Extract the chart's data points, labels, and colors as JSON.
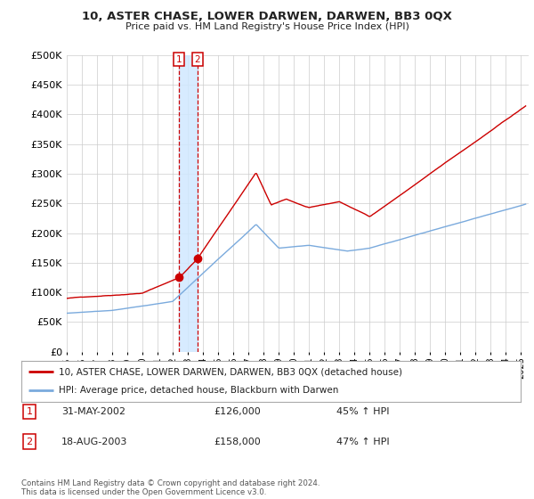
{
  "title": "10, ASTER CHASE, LOWER DARWEN, DARWEN, BB3 0QX",
  "subtitle": "Price paid vs. HM Land Registry's House Price Index (HPI)",
  "ytick_values": [
    0,
    50000,
    100000,
    150000,
    200000,
    250000,
    300000,
    350000,
    400000,
    450000,
    500000
  ],
  "ylim": [
    0,
    500000
  ],
  "xlim_start": 1995.0,
  "xlim_end": 2025.5,
  "xticks": [
    1995,
    1996,
    1997,
    1998,
    1999,
    2000,
    2001,
    2002,
    2003,
    2004,
    2005,
    2006,
    2007,
    2008,
    2009,
    2010,
    2011,
    2012,
    2013,
    2014,
    2015,
    2016,
    2017,
    2018,
    2019,
    2020,
    2021,
    2022,
    2023,
    2024,
    2025
  ],
  "transaction1_x": 2002.42,
  "transaction1_y": 126000,
  "transaction1_label": "1",
  "transaction1_date": "31-MAY-2002",
  "transaction1_price": "£126,000",
  "transaction1_hpi": "45% ↑ HPI",
  "transaction2_x": 2003.63,
  "transaction2_y": 158000,
  "transaction2_label": "2",
  "transaction2_date": "18-AUG-2003",
  "transaction2_price": "£158,000",
  "transaction2_hpi": "47% ↑ HPI",
  "line_color_property": "#cc0000",
  "line_color_hpi": "#7aaadd",
  "marker_box_color": "#cc0000",
  "highlight_color": "#d0e8ff",
  "legend_label_property": "10, ASTER CHASE, LOWER DARWEN, DARWEN, BB3 0QX (detached house)",
  "legend_label_hpi": "HPI: Average price, detached house, Blackburn with Darwen",
  "footnote": "Contains HM Land Registry data © Crown copyright and database right 2024.\nThis data is licensed under the Open Government Licence v3.0.",
  "background_color": "#ffffff",
  "grid_color": "#cccccc"
}
